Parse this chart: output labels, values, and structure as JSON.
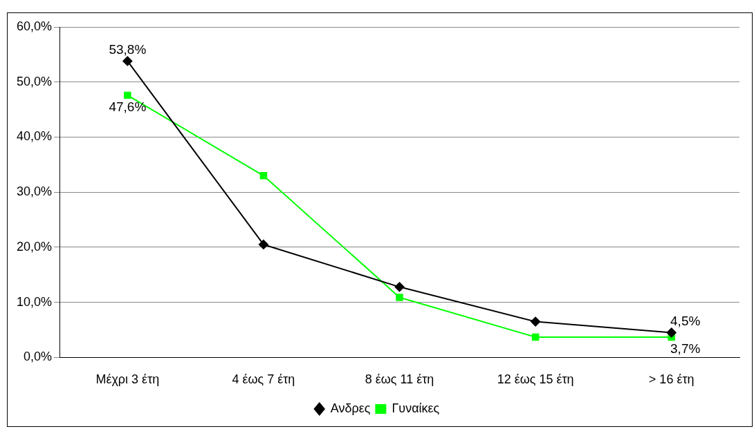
{
  "chart_data": {
    "type": "line",
    "categories": [
      "Μέχρι 3 έτη",
      "4 έως 7 έτη",
      "8 έως 11 έτη",
      "12 έως 15 έτη",
      "> 16 έτη"
    ],
    "series": [
      {
        "name": "Ανδρες",
        "color": "#000000",
        "marker": "diamond",
        "values": [
          53.8,
          20.5,
          12.8,
          6.5,
          4.5
        ],
        "value_labels": [
          "53,8%",
          null,
          null,
          null,
          "4,5%"
        ]
      },
      {
        "name": "Γυναίκες",
        "color": "#00ff00",
        "marker": "square",
        "values": [
          47.6,
          33.0,
          10.9,
          3.7,
          3.7
        ],
        "value_labels": [
          "47,6%",
          null,
          null,
          null,
          "3,7%"
        ]
      }
    ],
    "ylim": [
      0,
      60
    ],
    "yticks": [
      {
        "value": 0,
        "label": "0,0%"
      },
      {
        "value": 10,
        "label": "10,0%"
      },
      {
        "value": 20,
        "label": "20,0%"
      },
      {
        "value": 30,
        "label": "30,0%"
      },
      {
        "value": 40,
        "label": "40,0%"
      },
      {
        "value": 50,
        "label": "50,0%"
      },
      {
        "value": 60,
        "label": "60,0%"
      }
    ],
    "grid": "y",
    "legend": "bottom",
    "line_style": "solid"
  }
}
